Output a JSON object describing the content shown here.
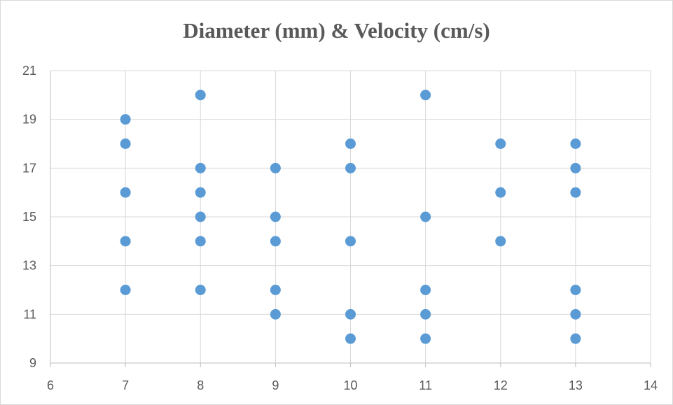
{
  "chart_data": {
    "type": "scatter",
    "title": "Diameter (mm) & Velocity (cm/s)",
    "xlabel": "",
    "ylabel": "",
    "xlim": [
      6,
      14
    ],
    "ylim": [
      9,
      21
    ],
    "x_ticks": [
      6,
      7,
      8,
      9,
      10,
      11,
      12,
      13,
      14
    ],
    "y_ticks": [
      9,
      11,
      13,
      15,
      17,
      19,
      21
    ],
    "grid": true,
    "legend": "none",
    "marker_color": "#5b9bd5",
    "gridline_color": "#d9d9d9",
    "points": [
      {
        "x": 7,
        "y": 19
      },
      {
        "x": 7,
        "y": 18
      },
      {
        "x": 7,
        "y": 16
      },
      {
        "x": 7,
        "y": 14
      },
      {
        "x": 7,
        "y": 12
      },
      {
        "x": 8,
        "y": 20
      },
      {
        "x": 8,
        "y": 17
      },
      {
        "x": 8,
        "y": 16
      },
      {
        "x": 8,
        "y": 15
      },
      {
        "x": 8,
        "y": 14
      },
      {
        "x": 8,
        "y": 12
      },
      {
        "x": 9,
        "y": 17
      },
      {
        "x": 9,
        "y": 15
      },
      {
        "x": 9,
        "y": 14
      },
      {
        "x": 9,
        "y": 12
      },
      {
        "x": 9,
        "y": 11
      },
      {
        "x": 10,
        "y": 18
      },
      {
        "x": 10,
        "y": 17
      },
      {
        "x": 10,
        "y": 14
      },
      {
        "x": 10,
        "y": 11
      },
      {
        "x": 10,
        "y": 10
      },
      {
        "x": 11,
        "y": 20
      },
      {
        "x": 11,
        "y": 15
      },
      {
        "x": 11,
        "y": 12
      },
      {
        "x": 11,
        "y": 11
      },
      {
        "x": 11,
        "y": 10
      },
      {
        "x": 12,
        "y": 18
      },
      {
        "x": 12,
        "y": 16
      },
      {
        "x": 12,
        "y": 14
      },
      {
        "x": 13,
        "y": 18
      },
      {
        "x": 13,
        "y": 17
      },
      {
        "x": 13,
        "y": 16
      },
      {
        "x": 13,
        "y": 12
      },
      {
        "x": 13,
        "y": 11
      },
      {
        "x": 13,
        "y": 10
      }
    ]
  }
}
